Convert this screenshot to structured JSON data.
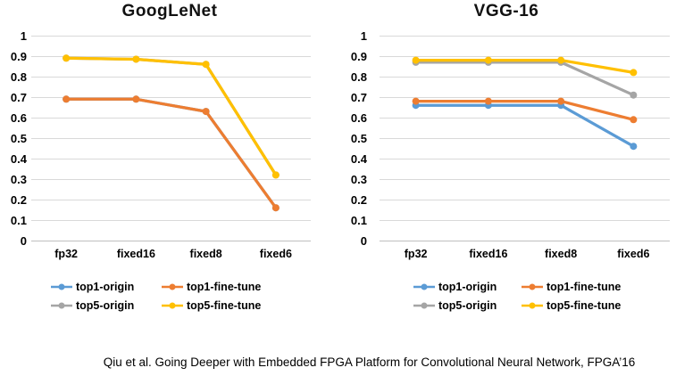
{
  "page": {
    "background": "#FFFFFF",
    "citation": "Qiu et al.  Going Deeper with Embedded FPGA Platform for Convolutional Neural Network, FPGA’16"
  },
  "colors": {
    "top1_origin": "#5B9BD5",
    "top1_fine_tune": "#ED7D31",
    "top5_origin": "#A5A5A5",
    "top5_fine_tune": "#FFC000",
    "gridline": "#D9D9D9",
    "axis_line": "#BFBFBF",
    "text": "#000000"
  },
  "chart_data": [
    {
      "type": "line",
      "title": "GoogLeNet",
      "categories": [
        "fp32",
        "fixed16",
        "fixed8",
        "fixed6"
      ],
      "y_tick_labels": [
        "1",
        "0.9",
        "0.8",
        "0.7",
        "0.6",
        "0.5",
        "0.4",
        "0.3",
        "0.2",
        "0.1",
        "0"
      ],
      "ylim": [
        0,
        1
      ],
      "grid": true,
      "marker": "circle",
      "legend_position": "bottom",
      "series": [
        {
          "name": "top1-origin",
          "color": "#5B9BD5",
          "values": [
            0.69,
            0.69,
            0.63,
            0.16
          ]
        },
        {
          "name": "top1-fine-tune",
          "color": "#ED7D31",
          "values": [
            0.69,
            0.69,
            0.63,
            0.16
          ]
        },
        {
          "name": "top5-origin",
          "color": "#A5A5A5",
          "values": [
            0.89,
            0.885,
            0.86,
            0.32
          ]
        },
        {
          "name": "top5-fine-tune",
          "color": "#FFC000",
          "values": [
            0.89,
            0.885,
            0.86,
            0.32
          ]
        }
      ]
    },
    {
      "type": "line",
      "title": "VGG-16",
      "categories": [
        "fp32",
        "fixed16",
        "fixed8",
        "fixed6"
      ],
      "y_tick_labels": [
        "1",
        "0.9",
        "0.8",
        "0.7",
        "0.6",
        "0.5",
        "0.4",
        "0.3",
        "0.2",
        "0.1",
        "0"
      ],
      "ylim": [
        0,
        1
      ],
      "grid": true,
      "marker": "circle",
      "legend_position": "bottom",
      "series": [
        {
          "name": "top1-origin",
          "color": "#5B9BD5",
          "values": [
            0.66,
            0.66,
            0.66,
            0.46
          ]
        },
        {
          "name": "top1-fine-tune",
          "color": "#ED7D31",
          "values": [
            0.68,
            0.68,
            0.68,
            0.59
          ]
        },
        {
          "name": "top5-origin",
          "color": "#A5A5A5",
          "values": [
            0.87,
            0.87,
            0.87,
            0.71
          ]
        },
        {
          "name": "top5-fine-tune",
          "color": "#FFC000",
          "values": [
            0.88,
            0.88,
            0.88,
            0.82
          ]
        }
      ]
    }
  ]
}
